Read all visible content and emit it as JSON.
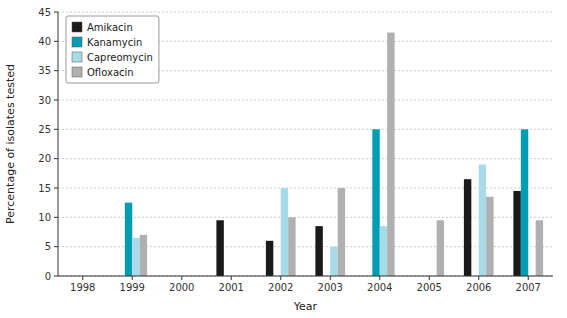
{
  "chart_data": {
    "type": "bar",
    "categories": [
      "1998",
      "1999",
      "2000",
      "2001",
      "2002",
      "2003",
      "2004",
      "2005",
      "2006",
      "2007"
    ],
    "series": [
      {
        "name": "Amikacin",
        "color": "#1a1a1a",
        "values": [
          0,
          0,
          0,
          9.5,
          6.0,
          8.5,
          0,
          0,
          16.5,
          14.5
        ]
      },
      {
        "name": "Kanamycin",
        "color": "#009db2",
        "values": [
          0,
          12.5,
          0,
          0,
          0,
          0,
          25.0,
          0,
          0,
          25.0
        ]
      },
      {
        "name": "Capreomycin",
        "color": "#a8dbe8",
        "values": [
          0,
          6.5,
          0,
          0,
          15.0,
          5.0,
          8.5,
          0,
          19.0,
          0
        ]
      },
      {
        "name": "Ofloxacin",
        "color": "#b0b0b0",
        "values": [
          0,
          7.0,
          0,
          0,
          10.0,
          15.0,
          41.5,
          9.5,
          13.5,
          9.5
        ]
      }
    ],
    "xlabel": "Year",
    "ylabel": "Percentage of isolates tested",
    "ylim": [
      0,
      45
    ],
    "yticks": [
      0,
      5,
      10,
      15,
      20,
      25,
      30,
      35,
      40,
      45
    ],
    "grid": true,
    "legend": "upper left"
  }
}
